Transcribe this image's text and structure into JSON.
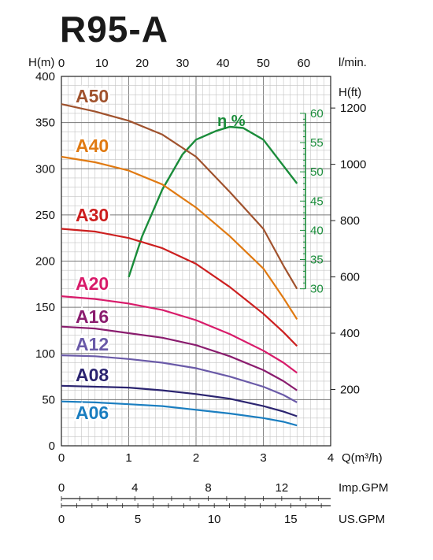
{
  "title": "R95-A",
  "chart_data": {
    "type": "line",
    "xlabel": "Q(m³/h)",
    "ylabel_left": "H(m)",
    "ylabel_right": "H(ft)",
    "top_axis_label": "l/min.",
    "xlim": [
      0,
      4
    ],
    "ylim": [
      0,
      400
    ],
    "x_ticks": [
      "0",
      "1",
      "2",
      "3",
      "4"
    ],
    "y_ticks": [
      "0",
      "50",
      "100",
      "150",
      "200",
      "250",
      "300",
      "350",
      "400"
    ],
    "top_ticks": {
      "values": [
        0,
        10,
        20,
        30,
        40,
        50,
        60
      ],
      "labels": [
        "0",
        "10",
        "20",
        "30",
        "40",
        "50",
        "60"
      ]
    },
    "ft_ticks": {
      "values": [
        200,
        400,
        600,
        800,
        1000,
        1200
      ],
      "labels": [
        "200",
        "400",
        "600",
        "800",
        "1000",
        "1200"
      ]
    },
    "imp_gpm": {
      "label": "Imp.GPM",
      "values": [
        0,
        4,
        8,
        12
      ],
      "labels": [
        "0",
        "4",
        "8",
        "12"
      ]
    },
    "us_gpm": {
      "label": "US.GPM",
      "values": [
        0,
        5,
        10,
        15
      ],
      "labels": [
        "0",
        "5",
        "10",
        "15"
      ]
    },
    "efficiency": {
      "label": "η %",
      "color": "#1a8c3a",
      "range": [
        30,
        60
      ],
      "ticks": [
        "30",
        "35",
        "40",
        "45",
        "50",
        "55",
        "60"
      ],
      "points": [
        [
          1.0,
          32
        ],
        [
          1.2,
          39
        ],
        [
          1.5,
          47
        ],
        [
          1.8,
          53
        ],
        [
          2.0,
          55.5
        ],
        [
          2.3,
          57
        ],
        [
          2.5,
          57.7
        ],
        [
          2.7,
          57.5
        ],
        [
          3.0,
          55.5
        ],
        [
          3.3,
          51
        ],
        [
          3.5,
          48
        ]
      ]
    },
    "series": [
      {
        "name": "A50",
        "color": "#a0522d",
        "points": [
          [
            0,
            370
          ],
          [
            0.5,
            362
          ],
          [
            1.0,
            352
          ],
          [
            1.5,
            337
          ],
          [
            2.0,
            313
          ],
          [
            2.5,
            275
          ],
          [
            3.0,
            235
          ],
          [
            3.3,
            195
          ],
          [
            3.5,
            170
          ]
        ]
      },
      {
        "name": "A40",
        "color": "#e07a12",
        "points": [
          [
            0,
            313
          ],
          [
            0.5,
            307
          ],
          [
            1.0,
            298
          ],
          [
            1.5,
            283
          ],
          [
            2.0,
            258
          ],
          [
            2.5,
            227
          ],
          [
            3.0,
            192
          ],
          [
            3.3,
            160
          ],
          [
            3.5,
            137
          ]
        ]
      },
      {
        "name": "A30",
        "color": "#cc1f1f",
        "points": [
          [
            0,
            235
          ],
          [
            0.5,
            232
          ],
          [
            1.0,
            225
          ],
          [
            1.5,
            214
          ],
          [
            2.0,
            197
          ],
          [
            2.5,
            172
          ],
          [
            3.0,
            143
          ],
          [
            3.3,
            123
          ],
          [
            3.5,
            108
          ]
        ]
      },
      {
        "name": "A20",
        "color": "#d81b6a",
        "points": [
          [
            0,
            162
          ],
          [
            0.5,
            159
          ],
          [
            1.0,
            154
          ],
          [
            1.5,
            147
          ],
          [
            2.0,
            136
          ],
          [
            2.5,
            121
          ],
          [
            3.0,
            103
          ],
          [
            3.3,
            90
          ],
          [
            3.5,
            79
          ]
        ]
      },
      {
        "name": "A16",
        "color": "#8a1c6e",
        "points": [
          [
            0,
            129
          ],
          [
            0.5,
            127
          ],
          [
            1.0,
            122
          ],
          [
            1.5,
            117
          ],
          [
            2.0,
            109
          ],
          [
            2.5,
            97
          ],
          [
            3.0,
            82
          ],
          [
            3.3,
            70
          ],
          [
            3.5,
            60
          ]
        ]
      },
      {
        "name": "A12",
        "color": "#6a5aa8",
        "points": [
          [
            0,
            98
          ],
          [
            0.5,
            97
          ],
          [
            1.0,
            94
          ],
          [
            1.5,
            90
          ],
          [
            2.0,
            84
          ],
          [
            2.5,
            75
          ],
          [
            3.0,
            64
          ],
          [
            3.3,
            55
          ],
          [
            3.5,
            47
          ]
        ]
      },
      {
        "name": "A08",
        "color": "#2b2470",
        "points": [
          [
            0,
            65
          ],
          [
            0.5,
            64
          ],
          [
            1.0,
            63
          ],
          [
            1.5,
            60
          ],
          [
            2.0,
            56
          ],
          [
            2.5,
            51
          ],
          [
            3.0,
            43
          ],
          [
            3.3,
            37
          ],
          [
            3.5,
            32
          ]
        ]
      },
      {
        "name": "A06",
        "color": "#1a7ec0",
        "points": [
          [
            0,
            48
          ],
          [
            0.5,
            47
          ],
          [
            1.0,
            45
          ],
          [
            1.5,
            43
          ],
          [
            2.0,
            39
          ],
          [
            2.5,
            35
          ],
          [
            3.0,
            30
          ],
          [
            3.3,
            26
          ],
          [
            3.5,
            22
          ]
        ]
      }
    ]
  }
}
